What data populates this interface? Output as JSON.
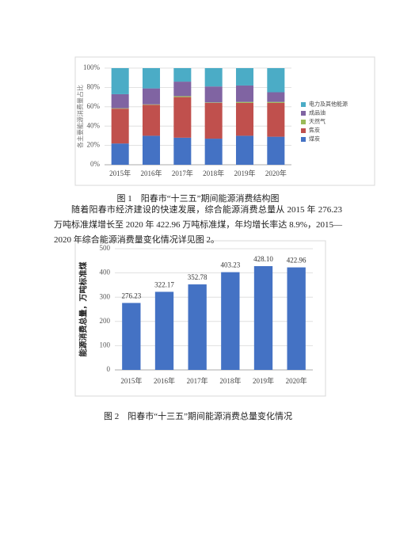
{
  "chart_data": [
    {
      "type": "bar",
      "stacked": true,
      "y_label": "各主要能源消费量占比",
      "categories": [
        "2015年",
        "2016年",
        "2017年",
        "2018年",
        "2019年",
        "2020年"
      ],
      "series": [
        {
          "name": "煤炭",
          "color": "#4472c4",
          "values": [
            22,
            30,
            28,
            27,
            30,
            29
          ]
        },
        {
          "name": "焦炭",
          "color": "#c0504d",
          "values": [
            36,
            32,
            42,
            37,
            34,
            35
          ]
        },
        {
          "name": "天然气",
          "color": "#9bbb59",
          "values": [
            0.5,
            0.5,
            1,
            0.5,
            1,
            1
          ]
        },
        {
          "name": "成品油",
          "color": "#8064a2",
          "values": [
            14.5,
            16.5,
            15,
            16.5,
            17,
            10
          ]
        },
        {
          "name": "电力及其他能源",
          "color": "#4bacc6",
          "values": [
            27,
            21,
            14,
            19,
            18,
            25
          ]
        }
      ],
      "ylim": [
        0,
        100
      ],
      "yticks": [
        {
          "value": 0,
          "label": "0%"
        },
        {
          "value": 20,
          "label": "20%"
        },
        {
          "value": 40,
          "label": "40%"
        },
        {
          "value": 60,
          "label": "60%"
        },
        {
          "value": 80,
          "label": "80%"
        },
        {
          "value": 100,
          "label": "100%"
        }
      ],
      "grid": true,
      "legend": "right"
    },
    {
      "type": "bar",
      "y_label": "能源消费总量，万吨标准煤",
      "categories": [
        "2015年",
        "2016年",
        "2017年",
        "2018年",
        "2019年",
        "2020年"
      ],
      "values": [
        276.23,
        322.17,
        352.78,
        403.23,
        428.1,
        422.96
      ],
      "value_labels": [
        "276.23",
        "322.17",
        "352.78",
        "403.23",
        "428.10",
        "422.96"
      ],
      "color": "#4472c4",
      "ylim": [
        0,
        500
      ],
      "yticks": [
        0,
        100,
        200,
        300,
        400,
        500
      ],
      "grid": true
    }
  ],
  "captions": [
    "图 1　阳春市“十三五”期间能源消费结构图",
    "图 2　阳春市“十三五”期间能源消费总量变化情况"
  ],
  "paragraph": "随着阳春市经济建设的快速发展，综合能源消费总量从 2015 年 276.23 万吨标准煤增长至 2020 年 422.96 万吨标准煤，年均增长率达 8.9%，2015—2020 年综合能源消费量变化情况详见图 2。"
}
